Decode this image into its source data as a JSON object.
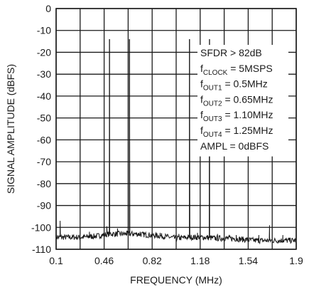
{
  "chart_data": {
    "type": "line",
    "xlabel": "FREQUENCY (MHz)",
    "ylabel": "SIGNAL AMPLITUDE (dBFS)",
    "xlim": [
      0.1,
      1.9
    ],
    "ylim": [
      -110,
      0
    ],
    "x_ticks": [
      0.1,
      0.46,
      0.82,
      1.18,
      1.54,
      1.9
    ],
    "x_tick_labels": [
      "0.1",
      "0.46",
      "0.82",
      "1.18",
      "1.54",
      "1.9"
    ],
    "y_ticks": [
      0,
      -10,
      -20,
      -30,
      -40,
      -50,
      -60,
      -70,
      -80,
      -90,
      -100,
      -110
    ],
    "y_tick_labels": [
      "0",
      "-10",
      "-20",
      "-30",
      "-40",
      "-50",
      "-60",
      "-70",
      "-80",
      "-90",
      "-100",
      "-110"
    ],
    "grid": true,
    "x_grid_lines": [
      0.1,
      0.28,
      0.46,
      0.64,
      0.82,
      1.0,
      1.18,
      1.36,
      1.54,
      1.72,
      1.9
    ],
    "series": [
      {
        "tones": [
          {
            "x": 0.5,
            "y": -14
          },
          {
            "x": 0.65,
            "y": -14
          },
          {
            "x": 1.1,
            "y": -14
          },
          {
            "x": 1.25,
            "y": -14
          }
        ],
        "spurs": [
          {
            "x": 0.13,
            "y": -97
          },
          {
            "x": 0.35,
            "y": -102
          },
          {
            "x": 0.48,
            "y": -99.5
          },
          {
            "x": 0.56,
            "y": -100.5
          },
          {
            "x": 0.63,
            "y": -101.5
          },
          {
            "x": 0.73,
            "y": -102
          },
          {
            "x": 0.88,
            "y": -102.5
          },
          {
            "x": 1.02,
            "y": -103
          },
          {
            "x": 1.16,
            "y": -102.5
          },
          {
            "x": 1.31,
            "y": -103
          },
          {
            "x": 1.45,
            "y": -103.5
          },
          {
            "x": 1.62,
            "y": -103.5
          },
          {
            "x": 1.7,
            "y": -99
          },
          {
            "x": 1.8,
            "y": -103.5
          }
        ],
        "noise_floor": {
          "x": [
            0.1,
            0.2,
            0.3,
            0.4,
            0.5,
            0.6,
            0.7,
            0.8,
            0.9,
            1.0,
            1.1,
            1.2,
            1.3,
            1.4,
            1.5,
            1.6,
            1.7,
            1.8,
            1.9
          ],
          "y": [
            -104.5,
            -104.5,
            -104.5,
            -104,
            -103,
            -103,
            -103,
            -103.5,
            -104,
            -105,
            -104.5,
            -104.5,
            -105,
            -105,
            -105.5,
            -106,
            -106,
            -106,
            -106
          ]
        }
      }
    ],
    "annotations": [
      {
        "main": "SFDR > 82dB",
        "sub": "",
        "rest": ""
      },
      {
        "main": "f",
        "sub": "CLOCK",
        "rest": " = 5MSPS"
      },
      {
        "main": "f",
        "sub": "OUT1",
        "rest": " = 0.5MHz"
      },
      {
        "main": "f",
        "sub": "OUT2",
        "rest": " = 0.65MHz"
      },
      {
        "main": "f",
        "sub": "OUT3",
        "rest": " = 1.10MHz"
      },
      {
        "main": "f",
        "sub": "OUT4",
        "rest": " = 1.25MHz"
      },
      {
        "main": "AMPL = 0dBFS",
        "sub": "",
        "rest": ""
      }
    ]
  }
}
